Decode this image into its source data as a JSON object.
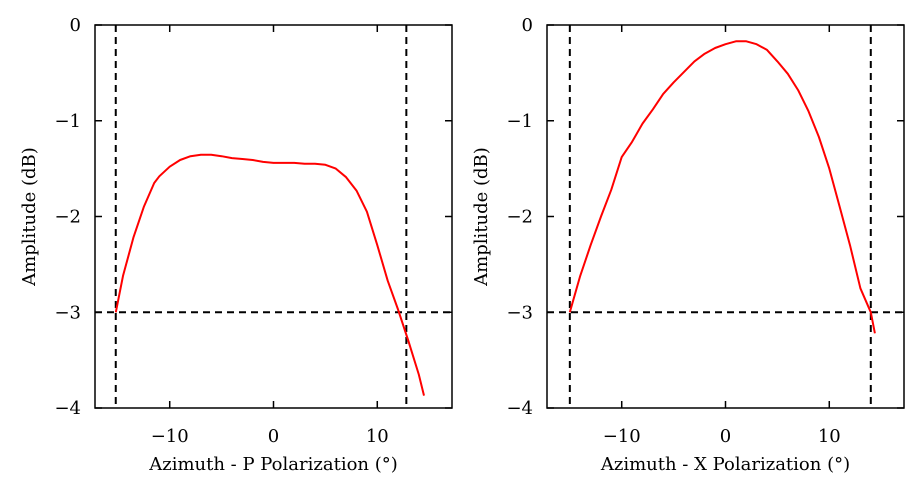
{
  "chart_data": [
    {
      "type": "line",
      "xlabel": "Azimuth - P Polarization (°)",
      "ylabel": "Amplitude (dB)",
      "xlim": [
        -17.2,
        17.2
      ],
      "ylim": [
        -4,
        0
      ],
      "xticks": [
        -10,
        0,
        10
      ],
      "yticks": [
        0,
        -1,
        -2,
        -3,
        -4
      ],
      "xtick_labels": [
        "−10",
        "0",
        "10"
      ],
      "ytick_labels": [
        "0",
        "−1",
        "−2",
        "−3",
        "−4"
      ],
      "grid": false,
      "series": [
        {
          "color": "#ff0000",
          "points": [
            [
              -15.2,
              -3.0
            ],
            [
              -14.5,
              -2.62
            ],
            [
              -13.5,
              -2.22
            ],
            [
              -12.5,
              -1.9
            ],
            [
              -11.5,
              -1.65
            ],
            [
              -11.0,
              -1.58
            ],
            [
              -10.0,
              -1.48
            ],
            [
              -9.0,
              -1.41
            ],
            [
              -8.0,
              -1.37
            ],
            [
              -7.0,
              -1.355
            ],
            [
              -6.0,
              -1.355
            ],
            [
              -5.0,
              -1.37
            ],
            [
              -4.0,
              -1.39
            ],
            [
              -3.0,
              -1.4
            ],
            [
              -2.0,
              -1.41
            ],
            [
              -1.0,
              -1.43
            ],
            [
              0.0,
              -1.44
            ],
            [
              1.0,
              -1.44
            ],
            [
              2.0,
              -1.44
            ],
            [
              3.0,
              -1.45
            ],
            [
              4.0,
              -1.45
            ],
            [
              5.0,
              -1.46
            ],
            [
              6.0,
              -1.5
            ],
            [
              7.0,
              -1.59
            ],
            [
              8.0,
              -1.73
            ],
            [
              9.0,
              -1.95
            ],
            [
              10.0,
              -2.3
            ],
            [
              11.0,
              -2.67
            ],
            [
              12.0,
              -2.97
            ],
            [
              13.0,
              -3.3
            ],
            [
              14.0,
              -3.65
            ],
            [
              14.5,
              -3.87
            ]
          ]
        }
      ],
      "reference_lines": {
        "vertical_x": [
          -15.2,
          12.8
        ],
        "horizontal_y": [
          -3
        ]
      }
    },
    {
      "type": "line",
      "xlabel": "Azimuth - X Polarization (°)",
      "ylabel": "Amplitude (dB)",
      "xlim": [
        -17.2,
        17.2
      ],
      "ylim": [
        -4,
        0
      ],
      "xticks": [
        -10,
        0,
        10
      ],
      "yticks": [
        0,
        -1,
        -2,
        -3,
        -4
      ],
      "xtick_labels": [
        "−10",
        "0",
        "10"
      ],
      "ytick_labels": [
        "0",
        "−1",
        "−2",
        "−3",
        "−4"
      ],
      "grid": false,
      "series": [
        {
          "color": "#ff0000",
          "points": [
            [
              -15.0,
              -3.0
            ],
            [
              -14.0,
              -2.62
            ],
            [
              -13.0,
              -2.3
            ],
            [
              -12.0,
              -2.0
            ],
            [
              -11.0,
              -1.72
            ],
            [
              -10.0,
              -1.38
            ],
            [
              -9.0,
              -1.22
            ],
            [
              -8.0,
              -1.03
            ],
            [
              -7.0,
              -0.88
            ],
            [
              -6.0,
              -0.72
            ],
            [
              -5.0,
              -0.6
            ],
            [
              -4.0,
              -0.49
            ],
            [
              -3.0,
              -0.38
            ],
            [
              -2.0,
              -0.3
            ],
            [
              -1.0,
              -0.24
            ],
            [
              0.0,
              -0.2
            ],
            [
              1.0,
              -0.17
            ],
            [
              2.0,
              -0.17
            ],
            [
              3.0,
              -0.2
            ],
            [
              4.0,
              -0.26
            ],
            [
              5.0,
              -0.38
            ],
            [
              6.0,
              -0.51
            ],
            [
              7.0,
              -0.68
            ],
            [
              8.0,
              -0.9
            ],
            [
              9.0,
              -1.17
            ],
            [
              10.0,
              -1.5
            ],
            [
              11.0,
              -1.9
            ],
            [
              12.0,
              -2.3
            ],
            [
              13.0,
              -2.75
            ],
            [
              14.0,
              -3.0
            ],
            [
              14.4,
              -3.22
            ]
          ]
        }
      ],
      "reference_lines": {
        "vertical_x": [
          -15.0,
          14.0
        ],
        "horizontal_y": [
          -3
        ]
      }
    }
  ]
}
